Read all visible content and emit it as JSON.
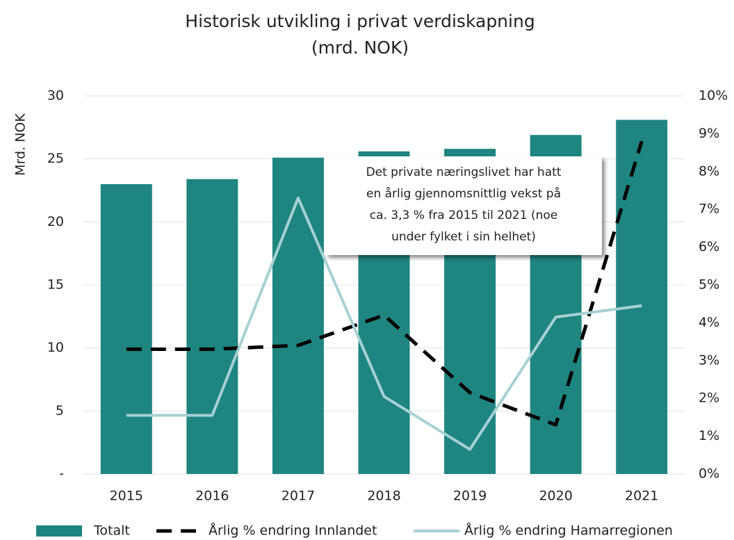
{
  "chart_data": {
    "type": "bar",
    "title": "Historisk utvikling i privat verdiskapning",
    "subtitle": "(mrd. NOK)",
    "y_label": "Mrd. NOK",
    "categories": [
      "2015",
      "2016",
      "2017",
      "2018",
      "2019",
      "2020",
      "2021"
    ],
    "series": [
      {
        "name": "Totalt",
        "type": "bar",
        "color": "#1f8580",
        "values": [
          23.0,
          23.4,
          25.1,
          25.6,
          25.8,
          26.9,
          28.1
        ]
      },
      {
        "name": "Årlig % endring Innlandet",
        "type": "line",
        "dashed": true,
        "axis": "y2",
        "color": "#000000",
        "values": [
          3.3,
          3.3,
          3.4,
          4.2,
          2.15,
          1.3,
          8.8
        ]
      },
      {
        "name": "Årlig % endring Hamarregionen",
        "type": "line",
        "dashed": false,
        "axis": "y2",
        "color": "#a8d0d3",
        "values": [
          1.55,
          1.55,
          7.3,
          2.05,
          0.65,
          4.15,
          4.45
        ]
      }
    ],
    "ylim": [
      0,
      30
    ],
    "yticks": [
      {
        "value": 0,
        "label": "-"
      },
      5,
      10,
      15,
      20,
      25,
      30
    ],
    "y2lim": [
      0,
      10
    ],
    "y2ticks": [
      {
        "value": 0,
        "label": "0%"
      },
      {
        "value": 1,
        "label": "1%"
      },
      {
        "value": 2,
        "label": "2%"
      },
      {
        "value": 3,
        "label": "3%"
      },
      {
        "value": 4,
        "label": "4%"
      },
      {
        "value": 5,
        "label": "5%"
      },
      {
        "value": 6,
        "label": "6%"
      },
      {
        "value": 7,
        "label": "7%"
      },
      {
        "value": 8,
        "label": "8%"
      },
      {
        "value": 9,
        "label": "9%"
      },
      {
        "value": 10,
        "label": "10%"
      }
    ],
    "grid": true,
    "legend": "bottom",
    "annotation": [
      "Det private næringslivet har hatt",
      "en årlig gjennomsnittlig vekst på",
      "ca. 3,3 % fra 2015 til 2021 (noe",
      "under fylket i sin helhet)"
    ]
  }
}
